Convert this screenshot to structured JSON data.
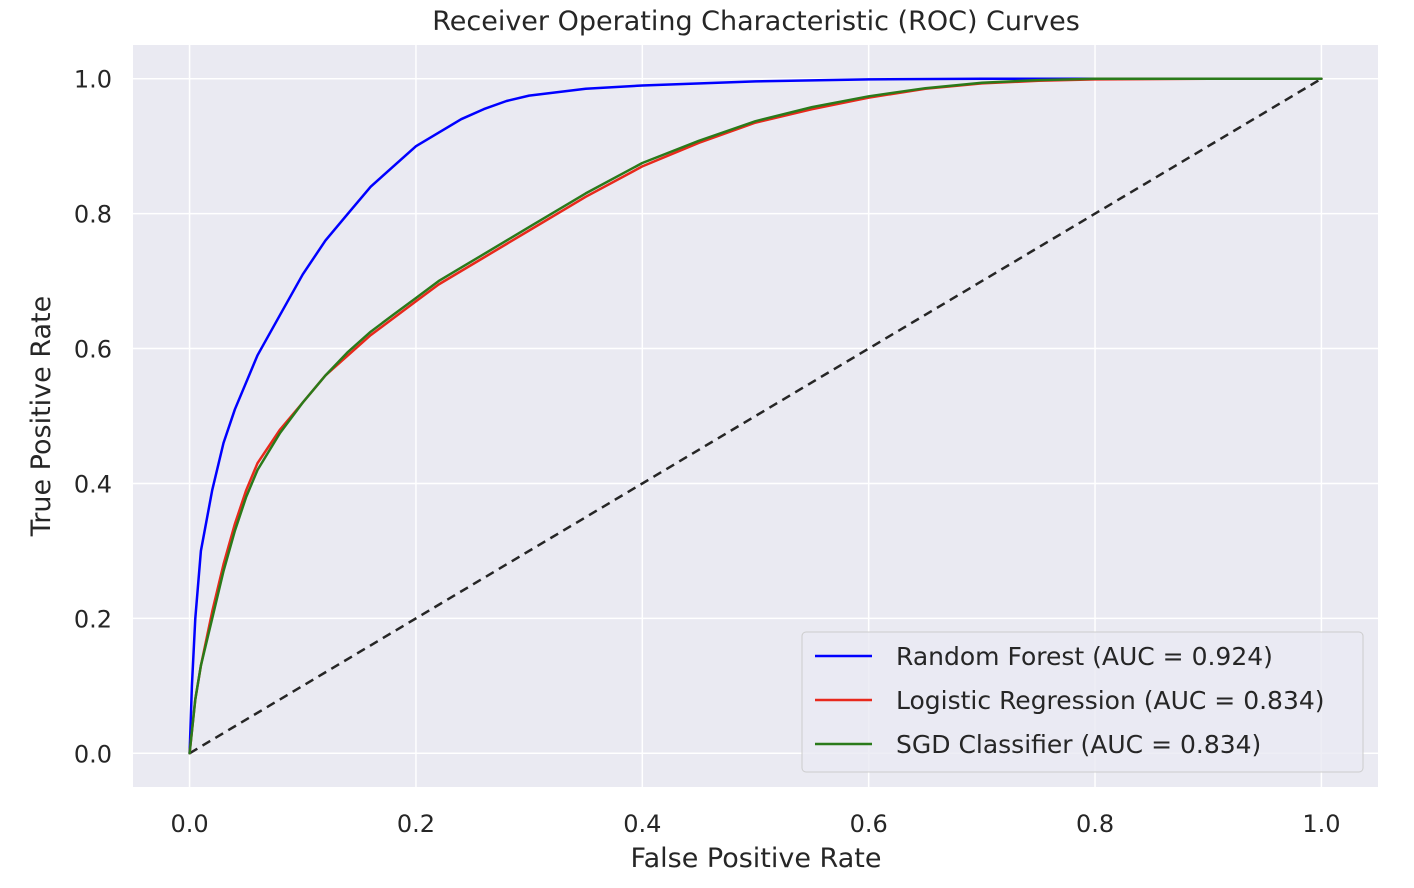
{
  "chart_data": {
    "type": "line",
    "title": "Receiver Operating Characteristic (ROC) Curves",
    "xlabel": "False Positive Rate",
    "ylabel": "True Positive Rate",
    "xlim": [
      -0.05,
      1.05
    ],
    "ylim": [
      -0.05,
      1.05
    ],
    "xticks": [
      "0.0",
      "0.2",
      "0.4",
      "0.6",
      "0.8",
      "1.0"
    ],
    "yticks": [
      "0.0",
      "0.2",
      "0.4",
      "0.6",
      "0.8",
      "1.0"
    ],
    "grid": true,
    "legend_position": "lower-right",
    "colors": {
      "background": "#eaeaf2",
      "grid": "#ffffff",
      "diagonal": "#262626"
    },
    "series": [
      {
        "name": "Random Forest (AUC = 0.924)",
        "color": "#0000ff",
        "x": [
          0.0,
          0.002,
          0.005,
          0.01,
          0.02,
          0.03,
          0.04,
          0.05,
          0.06,
          0.08,
          0.1,
          0.12,
          0.14,
          0.16,
          0.18,
          0.2,
          0.22,
          0.24,
          0.26,
          0.28,
          0.3,
          0.35,
          0.4,
          0.5,
          0.6,
          0.7,
          0.8,
          0.9,
          1.0
        ],
        "y": [
          0.0,
          0.1,
          0.2,
          0.3,
          0.39,
          0.46,
          0.51,
          0.55,
          0.59,
          0.65,
          0.71,
          0.76,
          0.8,
          0.84,
          0.87,
          0.9,
          0.92,
          0.94,
          0.955,
          0.967,
          0.975,
          0.985,
          0.99,
          0.996,
          0.999,
          1.0,
          1.0,
          1.0,
          1.0
        ]
      },
      {
        "name": "Logistic Regression (AUC = 0.834)",
        "color": "#e8291c",
        "x": [
          0.0,
          0.005,
          0.01,
          0.02,
          0.03,
          0.04,
          0.05,
          0.06,
          0.08,
          0.1,
          0.12,
          0.14,
          0.16,
          0.18,
          0.2,
          0.22,
          0.24,
          0.26,
          0.28,
          0.3,
          0.35,
          0.4,
          0.45,
          0.5,
          0.55,
          0.6,
          0.65,
          0.7,
          0.75,
          0.8,
          0.9,
          1.0
        ],
        "y": [
          0.0,
          0.08,
          0.13,
          0.21,
          0.28,
          0.34,
          0.39,
          0.43,
          0.48,
          0.52,
          0.56,
          0.59,
          0.62,
          0.645,
          0.67,
          0.695,
          0.715,
          0.735,
          0.755,
          0.775,
          0.825,
          0.87,
          0.905,
          0.935,
          0.955,
          0.972,
          0.985,
          0.993,
          0.997,
          0.999,
          1.0,
          1.0
        ]
      },
      {
        "name": "SGD Classifier (AUC = 0.834)",
        "color": "#2a7a1a",
        "x": [
          0.0,
          0.005,
          0.01,
          0.02,
          0.03,
          0.04,
          0.05,
          0.06,
          0.08,
          0.1,
          0.12,
          0.14,
          0.16,
          0.18,
          0.2,
          0.22,
          0.24,
          0.26,
          0.28,
          0.3,
          0.35,
          0.4,
          0.45,
          0.5,
          0.55,
          0.6,
          0.65,
          0.7,
          0.75,
          0.8,
          0.9,
          1.0
        ],
        "y": [
          0.0,
          0.08,
          0.13,
          0.2,
          0.27,
          0.33,
          0.38,
          0.42,
          0.475,
          0.52,
          0.56,
          0.595,
          0.625,
          0.65,
          0.675,
          0.7,
          0.72,
          0.74,
          0.76,
          0.78,
          0.83,
          0.875,
          0.908,
          0.937,
          0.958,
          0.974,
          0.986,
          0.994,
          0.998,
          1.0,
          1.0,
          1.0
        ]
      }
    ],
    "reference_line": {
      "x": [
        0.0,
        1.0
      ],
      "y": [
        0.0,
        1.0
      ],
      "style": "dashed"
    }
  }
}
